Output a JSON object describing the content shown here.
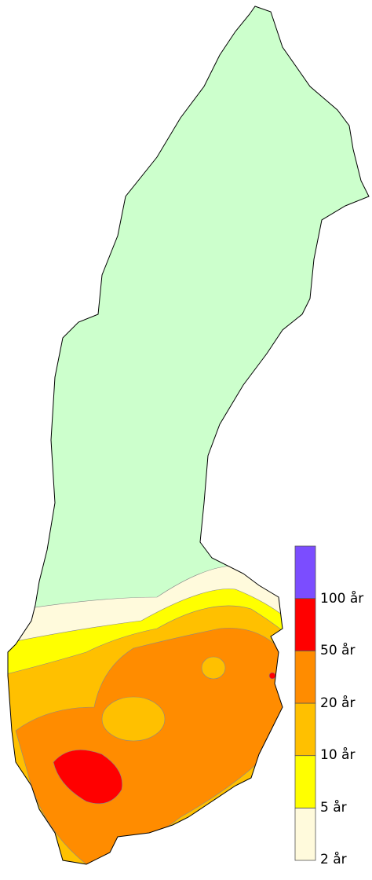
{
  "legend": {
    "colors": [
      "#7b4dff",
      "#ff0000",
      "#ff8c00",
      "#ffc000",
      "#ffff00",
      "#fffadc"
    ],
    "labels": [
      "100 år",
      "50 år",
      "20 år",
      "10 år",
      "5 år",
      "2 år"
    ]
  }
}
